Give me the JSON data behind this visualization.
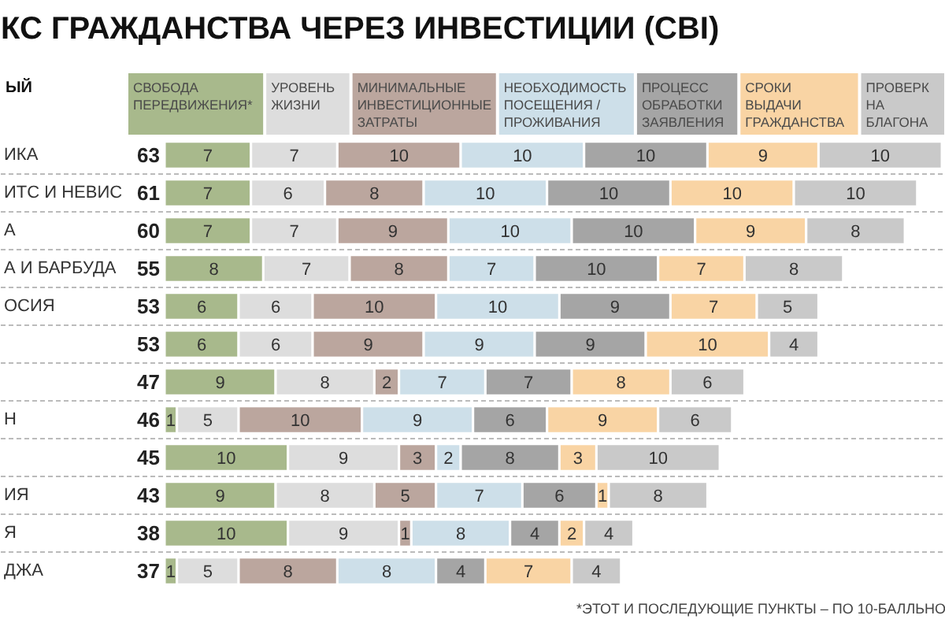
{
  "chart_data": {
    "type": "bar",
    "orientation": "horizontal",
    "stacked": true,
    "title": "КС ГРАЖДАНСТВА ЧЕРЕЗ ИНВЕСТИЦИИ (CBI)",
    "categories": [
      "ИКА",
      "ИТС И НЕВИС",
      "А",
      "А И БАРБУДА",
      "ОСИЯ",
      null,
      null,
      "Н",
      null,
      "ИЯ",
      "Я",
      "ДЖА"
    ],
    "series": [
      {
        "name": "СВОБОДА\nПЕРЕДВИЖЕНИЯ*",
        "color": "#a8b98c",
        "values": [
          7,
          7,
          7,
          8,
          6,
          6,
          9,
          1,
          10,
          9,
          10,
          1
        ]
      },
      {
        "name": "УРОВЕНЬ\nЖИЗНИ",
        "color": "#dddddd",
        "values": [
          7,
          6,
          7,
          7,
          6,
          6,
          8,
          5,
          9,
          8,
          9,
          5
        ]
      },
      {
        "name": "МИНИМАЛЬНЫЕ\nИНВЕСТИЦИОННЫЕ\nЗАТРАТЫ",
        "color": "#bba69e",
        "values": [
          10,
          8,
          9,
          8,
          10,
          9,
          2,
          10,
          3,
          5,
          1,
          8
        ]
      },
      {
        "name": "НЕОБХОДИМОСТЬ\nПОСЕЩЕНИЯ /\nПРОЖИВАНИЯ",
        "color": "#cddfe9",
        "values": [
          10,
          10,
          10,
          7,
          10,
          9,
          7,
          9,
          2,
          7,
          8,
          8
        ]
      },
      {
        "name": "ПРОЦЕСС\nОБРАБОТКИ\nЗАЯВЛЕНИЯ",
        "color": "#a5a5a5",
        "values": [
          10,
          10,
          10,
          10,
          9,
          9,
          7,
          6,
          8,
          6,
          4,
          4
        ]
      },
      {
        "name": "СРОКИ\nВЫДАЧИ\nГРАЖДАНСТВА",
        "color": "#f9d4a4",
        "values": [
          9,
          10,
          9,
          7,
          7,
          10,
          8,
          9,
          3,
          1,
          2,
          7
        ]
      },
      {
        "name": "ПРОВЕРК\nНА\nБЛАГОНА",
        "color": "#c9c9c9",
        "values": [
          10,
          10,
          8,
          8,
          5,
          4,
          6,
          6,
          10,
          8,
          4,
          4
        ]
      }
    ],
    "totals": [
      "63",
      "61",
      "60",
      "55",
      "53",
      "53",
      "47",
      "46",
      "45",
      "43",
      "38",
      "37"
    ],
    "data_labels": true,
    "legend": "top",
    "grid": "y",
    "annotations": [
      "ЫЙ",
      "*ЭТОТ И ПОСЛЕДУЮЩИЕ ПУНКТЫ – ПО 10-БАЛЛЬНО"
    ]
  }
}
